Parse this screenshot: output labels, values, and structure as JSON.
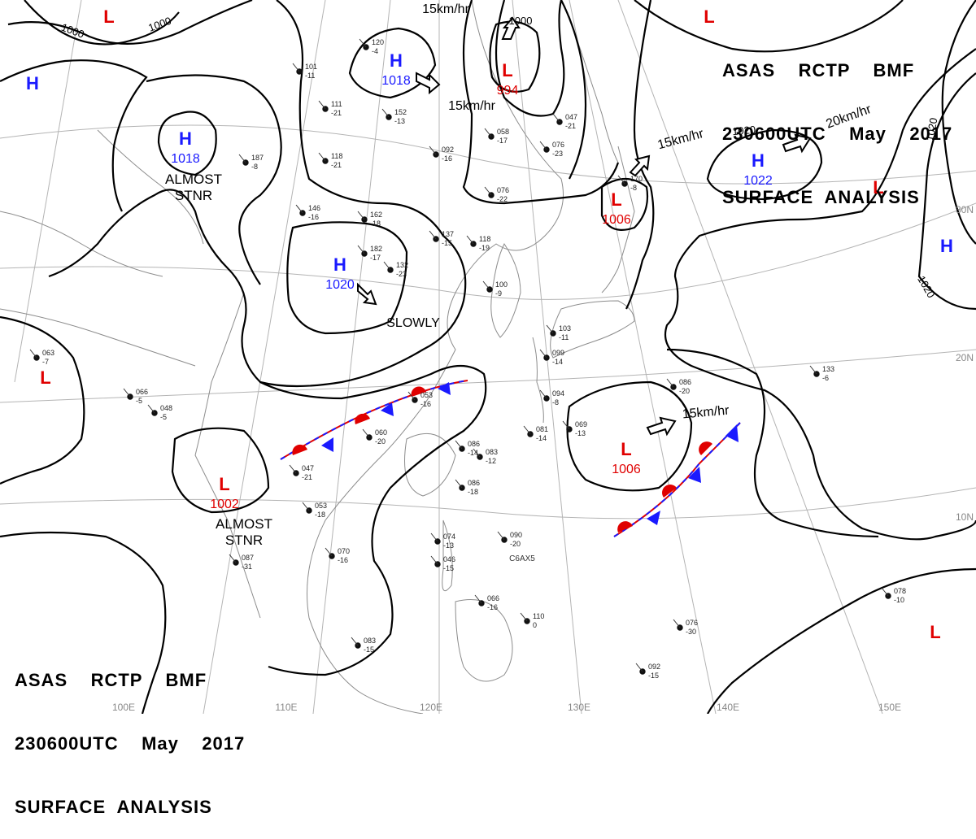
{
  "header_top": {
    "line1": "ASAS    RCTP    BMF",
    "line2": "230600UTC    May    2017",
    "line3": "SURFACE  ANALYSIS"
  },
  "header_bottom": {
    "line1": "ASAS    RCTP    BMF",
    "line2": "230600UTC    May    2017",
    "line3": "SURFACE  ANALYSIS"
  },
  "colors": {
    "high": "#1a1aff",
    "low": "#e00000",
    "isobar": "#000000",
    "coast": "#9a9a9a",
    "grid": "#b0b0b0"
  },
  "grid_labels": {
    "lon": [
      "100E",
      "110E",
      "120E",
      "130E",
      "140E",
      "150E"
    ],
    "lat": [
      "30N",
      "20N",
      "10N"
    ]
  },
  "pressure_centers": [
    {
      "type": "L",
      "value": ""
    },
    {
      "type": "H",
      "value": ""
    },
    {
      "type": "H",
      "value": "1018"
    },
    {
      "type": "H",
      "value": "1018"
    },
    {
      "type": "L",
      "value": "994"
    },
    {
      "type": "L",
      "value": ""
    },
    {
      "type": "H",
      "value": "1022"
    },
    {
      "type": "L",
      "value": "1006"
    },
    {
      "type": "L",
      "value": ""
    },
    {
      "type": "H",
      "value": "1020"
    },
    {
      "type": "H",
      "value": ""
    },
    {
      "type": "L",
      "value": ""
    },
    {
      "type": "L",
      "value": "1002"
    },
    {
      "type": "L",
      "value": "1006"
    },
    {
      "type": "L",
      "value": ""
    }
  ],
  "isobar_labels": [
    "1000",
    "1000",
    "1000",
    "1020",
    "1020",
    "1020"
  ],
  "motion_labels": [
    "15km/hr",
    "15km/hr",
    "15km/hr",
    "20km/hr",
    "15km/hr",
    "SLOWLY",
    "ALMOST STNR",
    "ALMOST STNR"
  ],
  "stations": [
    {
      "a": "120",
      "b": "-4"
    },
    {
      "a": "101",
      "b": "-11"
    },
    {
      "a": "111",
      "b": "-21"
    },
    {
      "a": "152",
      "b": "-13"
    },
    {
      "a": "118",
      "b": "-21"
    },
    {
      "a": "187",
      "b": "-8"
    },
    {
      "a": "146",
      "b": "-16"
    },
    {
      "a": "162",
      "b": "-18"
    },
    {
      "a": "182",
      "b": "-17"
    },
    {
      "a": "132",
      "b": "-23"
    },
    {
      "a": "137",
      "b": "-15"
    },
    {
      "a": "118",
      "b": "-19"
    },
    {
      "a": "092",
      "b": "-16"
    },
    {
      "a": "076",
      "b": "-22"
    },
    {
      "a": "058",
      "b": "-17"
    },
    {
      "a": "047",
      "b": "-21"
    },
    {
      "a": "076",
      "b": "-23"
    },
    {
      "a": "170",
      "b": "-8"
    },
    {
      "a": "100",
      "b": "-9"
    },
    {
      "a": "103",
      "b": "-11"
    },
    {
      "a": "099",
      "b": "-14"
    },
    {
      "a": "094",
      "b": "-8"
    },
    {
      "a": "081",
      "b": "-14"
    },
    {
      "a": "069",
      "b": "-13"
    },
    {
      "a": "086",
      "b": "-20"
    },
    {
      "a": "133",
      "b": "-6"
    },
    {
      "a": "053",
      "b": "-16"
    },
    {
      "a": "060",
      "b": "-20"
    },
    {
      "a": "086",
      "b": "-14"
    },
    {
      "a": "083",
      "b": "-12"
    },
    {
      "a": "086",
      "b": "-18"
    },
    {
      "a": "047",
      "b": "-21"
    },
    {
      "a": "053",
      "b": "-18"
    },
    {
      "a": "070",
      "b": "-16"
    },
    {
      "a": "087",
      "b": "-31"
    },
    {
      "a": "074",
      "b": "-13"
    },
    {
      "a": "046",
      "b": "-15"
    },
    {
      "a": "090",
      "b": "-20"
    },
    {
      "a": "066",
      "b": "-16"
    },
    {
      "a": "110",
      "b": "0"
    },
    {
      "a": "083",
      "b": "-15"
    },
    {
      "a": "092",
      "b": "-15"
    },
    {
      "a": "076",
      "b": "-30"
    },
    {
      "a": "078",
      "b": "-10"
    },
    {
      "a": "066",
      "b": "-5"
    },
    {
      "a": "048",
      "b": "-5"
    },
    {
      "a": "063",
      "b": "-7"
    }
  ],
  "misc_labels": [
    "C6AX5"
  ]
}
